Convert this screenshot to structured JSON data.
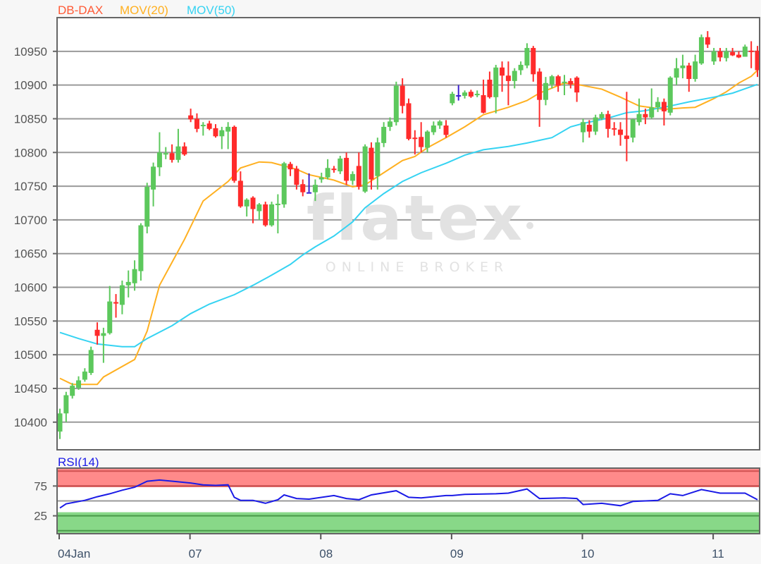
{
  "legend": {
    "instrument": "DB-DAX",
    "ma20": "MOV(20)",
    "ma50": "MOV(50)",
    "rsi": "RSI(14)"
  },
  "watermark": {
    "brand": "flatex",
    "tagline": "ONLINE BROKER"
  },
  "colors": {
    "up": "#5cc85c",
    "down": "#ff2b2b",
    "flat": "#3a1fd0",
    "ma20": "#ffb020",
    "ma50": "#35d3f2",
    "rsi": "#1a1ae6",
    "instrument_label": "#ff5a36",
    "overbought": "#ff8a8a",
    "oversold": "#88d888"
  },
  "chart_data": [
    {
      "type": "candlestick",
      "title": "DB-DAX",
      "ylim": [
        10359,
        11000
      ],
      "y_ticks": [
        10400,
        10450,
        10500,
        10550,
        10600,
        10650,
        10700,
        10750,
        10800,
        10850,
        10900,
        10950
      ],
      "grid": true,
      "x_ticks": [
        {
          "label": "04Jan",
          "bar": 0
        },
        {
          "label": "07",
          "bar": 21
        },
        {
          "label": "08",
          "bar": 42
        },
        {
          "label": "09",
          "bar": 63
        },
        {
          "label": "10",
          "bar": 84
        },
        {
          "label": "11",
          "bar": 105
        }
      ],
      "ohlc_fields": [
        "open",
        "high",
        "low",
        "close"
      ],
      "candles": [
        [
          10386,
          10420,
          10375,
          10413
        ],
        [
          10413,
          10445,
          10400,
          10440
        ],
        [
          10439,
          10458,
          10435,
          10454
        ],
        [
          10451,
          10468,
          10448,
          10462
        ],
        [
          10463,
          10480,
          10460,
          10475
        ],
        [
          10473,
          10512,
          10470,
          10507
        ],
        [
          10537,
          10548,
          10515,
          10528
        ],
        [
          10528,
          10540,
          10488,
          10532
        ],
        [
          10532,
          10602,
          10530,
          10579
        ],
        [
          10578,
          10590,
          10555,
          10577
        ],
        [
          10574,
          10610,
          10560,
          10603
        ],
        [
          10603,
          10625,
          10585,
          10608
        ],
        [
          10606,
          10640,
          10595,
          10627
        ],
        [
          10624,
          10695,
          10610,
          10692
        ],
        [
          10690,
          10755,
          10680,
          10749
        ],
        [
          10745,
          10785,
          10720,
          10779
        ],
        [
          10778,
          10830,
          10765,
          10800
        ],
        [
          10798,
          10808,
          10790,
          10799
        ],
        [
          10799,
          10812,
          10785,
          10789
        ],
        [
          10789,
          10835,
          10785,
          10809
        ],
        [
          10809,
          10815,
          10795,
          10797
        ],
        [
          10855,
          10865,
          10845,
          10849
        ],
        [
          10850,
          10858,
          10830,
          10835
        ],
        [
          10839,
          10845,
          10825,
          10841
        ],
        [
          10843,
          10847,
          10833,
          10835
        ],
        [
          10836,
          10842,
          10822,
          10824
        ],
        [
          10824,
          10838,
          10805,
          10833
        ],
        [
          10831,
          10845,
          10805,
          10838
        ],
        [
          10838,
          10840,
          10755,
          10758
        ],
        [
          10758,
          10772,
          10718,
          10720
        ],
        [
          10720,
          10732,
          10705,
          10730
        ],
        [
          10733,
          10735,
          10695,
          10716
        ],
        [
          10713,
          10725,
          10700,
          10723
        ],
        [
          10723,
          10727,
          10690,
          10692
        ],
        [
          10692,
          10727,
          10690,
          10723
        ],
        [
          10723,
          10738,
          10680,
          10724
        ],
        [
          10723,
          10786,
          10718,
          10784
        ],
        [
          10783,
          10786,
          10765,
          10775
        ],
        [
          10776,
          10780,
          10745,
          10752
        ],
        [
          10753,
          10760,
          10735,
          10741
        ],
        [
          10741,
          10769,
          10741,
          10741
        ],
        [
          10741,
          10760,
          10728,
          10752
        ],
        [
          10760,
          10770,
          10755,
          10763
        ],
        [
          10763,
          10790,
          10760,
          10777
        ],
        [
          10776,
          10780,
          10770,
          10775
        ],
        [
          10772,
          10795,
          10768,
          10791
        ],
        [
          10792,
          10800,
          10752,
          10758
        ],
        [
          10758,
          10772,
          10752,
          10768
        ],
        [
          10780,
          10800,
          10745,
          10749
        ],
        [
          10742,
          10812,
          10740,
          10809
        ],
        [
          10807,
          10815,
          10745,
          10760
        ],
        [
          10765,
          10822,
          10745,
          10815
        ],
        [
          10814,
          10845,
          10808,
          10838
        ],
        [
          10838,
          10852,
          10832,
          10846
        ],
        [
          10845,
          10905,
          10840,
          10899
        ],
        [
          10899,
          10910,
          10858,
          10869
        ],
        [
          10873,
          10880,
          10818,
          10820
        ],
        [
          10822,
          10833,
          10797,
          10821
        ],
        [
          10823,
          10845,
          10800,
          10808
        ],
        [
          10807,
          10833,
          10800,
          10831
        ],
        [
          10830,
          10846,
          10826,
          10840
        ],
        [
          10840,
          10848,
          10835,
          10846
        ],
        [
          10840,
          10848,
          10822,
          10826
        ],
        [
          10873,
          10890,
          10870,
          10887
        ],
        [
          10885,
          10900,
          10877,
          10885
        ],
        [
          10884,
          10892,
          10880,
          10889
        ],
        [
          10890,
          10893,
          10881,
          10883
        ],
        [
          10886,
          10892,
          10882,
          10887
        ],
        [
          10885,
          10908,
          10858,
          10859
        ],
        [
          10908,
          10920,
          10880,
          10882
        ],
        [
          10882,
          10930,
          10858,
          10926
        ],
        [
          10926,
          10935,
          10890,
          10914
        ],
        [
          10914,
          10935,
          10870,
          10906
        ],
        [
          10906,
          10925,
          10895,
          10921
        ],
        [
          10922,
          10935,
          10915,
          10930
        ],
        [
          10929,
          10962,
          10925,
          10955
        ],
        [
          10955,
          10958,
          10905,
          10916
        ],
        [
          10920,
          10925,
          10838,
          10878
        ],
        [
          10878,
          10912,
          10870,
          10903
        ],
        [
          10901,
          10915,
          10895,
          10913
        ],
        [
          10913,
          10915,
          10890,
          10899
        ],
        [
          10904,
          10915,
          10885,
          10905
        ],
        [
          10906,
          10910,
          10895,
          10901
        ],
        [
          10911,
          10913,
          10875,
          10889
        ],
        [
          10830,
          10850,
          10815,
          10845
        ],
        [
          10841,
          10848,
          10822,
          10831
        ],
        [
          10831,
          10856,
          10826,
          10852
        ],
        [
          10851,
          10860,
          10848,
          10857
        ],
        [
          10857,
          10862,
          10822,
          10835
        ],
        [
          10836,
          10845,
          10825,
          10835
        ],
        [
          10834,
          10845,
          10810,
          10826
        ],
        [
          10825,
          10890,
          10787,
          10820
        ],
        [
          10822,
          10850,
          10815,
          10849
        ],
        [
          10845,
          10880,
          10840,
          10857
        ],
        [
          10857,
          10865,
          10842,
          10852
        ],
        [
          10852,
          10895,
          10850,
          10867
        ],
        [
          10867,
          10882,
          10860,
          10875
        ],
        [
          10875,
          10880,
          10840,
          10861
        ],
        [
          10859,
          10913,
          10855,
          10911
        ],
        [
          10911,
          10940,
          10900,
          10925
        ],
        [
          10925,
          10945,
          10910,
          10929
        ],
        [
          10929,
          10933,
          10890,
          10909
        ],
        [
          10909,
          10945,
          10905,
          10935
        ],
        [
          10932,
          10975,
          10930,
          10971
        ],
        [
          10971,
          10980,
          10955,
          10960
        ],
        [
          10935,
          10955,
          10930,
          10950
        ],
        [
          10950,
          10955,
          10935,
          10941
        ],
        [
          10940,
          10955,
          10935,
          10950
        ],
        [
          10949,
          10955,
          10943,
          10944
        ],
        [
          10945,
          10950,
          10940,
          10941
        ],
        [
          10942,
          10960,
          10942,
          10957
        ],
        [
          10951,
          10965,
          10925,
          10950
        ],
        [
          10951,
          10958,
          10912,
          10922
        ]
      ],
      "series": [
        {
          "name": "MOV(20)",
          "bars": [
            0,
            2,
            6,
            7,
            12,
            14,
            16,
            20,
            23,
            27,
            29,
            32,
            34,
            36,
            38,
            40,
            44,
            47,
            49,
            52,
            55,
            57,
            59,
            62,
            65,
            68,
            72,
            75,
            77,
            81,
            83,
            87,
            90,
            93,
            97,
            100,
            102,
            105,
            107,
            109,
            111,
            112
          ],
          "values": [
            10465,
            10456,
            10456,
            10467,
            10493,
            10535,
            10603,
            10671,
            10728,
            10757,
            10777,
            10786,
            10785,
            10780,
            10775,
            10767,
            10759,
            10749,
            10752,
            10770,
            10788,
            10794,
            10807,
            10822,
            10838,
            10856,
            10867,
            10877,
            10888,
            10903,
            10901,
            10894,
            10882,
            10869,
            10864,
            10866,
            10867,
            10880,
            10890,
            10903,
            10913,
            10922
          ]
        },
        {
          "name": "MOV(50)",
          "bars": [
            0,
            3,
            6,
            10,
            12,
            14,
            18,
            21,
            24,
            28,
            31,
            34,
            37,
            39,
            41,
            44,
            47,
            49,
            52,
            55,
            58,
            62,
            65,
            68,
            72,
            75,
            79,
            82,
            84,
            88,
            91,
            94,
            98,
            101,
            105,
            108,
            112
          ],
          "values": [
            10533,
            10524,
            10516,
            10512,
            10512,
            10524,
            10543,
            10561,
            10575,
            10589,
            10603,
            10618,
            10634,
            10648,
            10660,
            10676,
            10697,
            10718,
            10739,
            10757,
            10770,
            10784,
            10796,
            10804,
            10809,
            10814,
            10822,
            10838,
            10843,
            10851,
            10859,
            10862,
            10869,
            10875,
            10882,
            10888,
            10901
          ]
        }
      ]
    },
    {
      "type": "line",
      "title": "RSI(14)",
      "ylim": [
        -5,
        105
      ],
      "y_ticks": [
        75,
        25
      ],
      "midline": 50,
      "overbought_band": [
        73,
        105
      ],
      "oversold_band": [
        -5,
        31
      ],
      "series": [
        {
          "name": "RSI(14)",
          "bars": [
            0,
            1,
            4,
            6,
            8,
            10,
            12,
            14,
            16,
            19,
            21,
            23,
            25,
            27,
            28,
            29,
            31,
            33,
            35,
            36,
            38,
            40,
            44,
            46,
            48,
            50,
            54,
            56,
            58,
            62,
            63,
            65,
            70,
            72,
            75,
            77,
            81,
            83,
            84,
            87,
            90,
            92,
            96,
            98,
            100,
            103,
            106,
            110,
            112
          ],
          "values": [
            38,
            45,
            51,
            57,
            62,
            68,
            73,
            83,
            85,
            82,
            80,
            77,
            76,
            77,
            56,
            51,
            51,
            46,
            52,
            60,
            54,
            53,
            59,
            54,
            52,
            60,
            67,
            56,
            55,
            59,
            59,
            61,
            62,
            63,
            70,
            54,
            55,
            54,
            44,
            46,
            42,
            49,
            51,
            62,
            59,
            69,
            63,
            63,
            52
          ]
        }
      ]
    }
  ]
}
